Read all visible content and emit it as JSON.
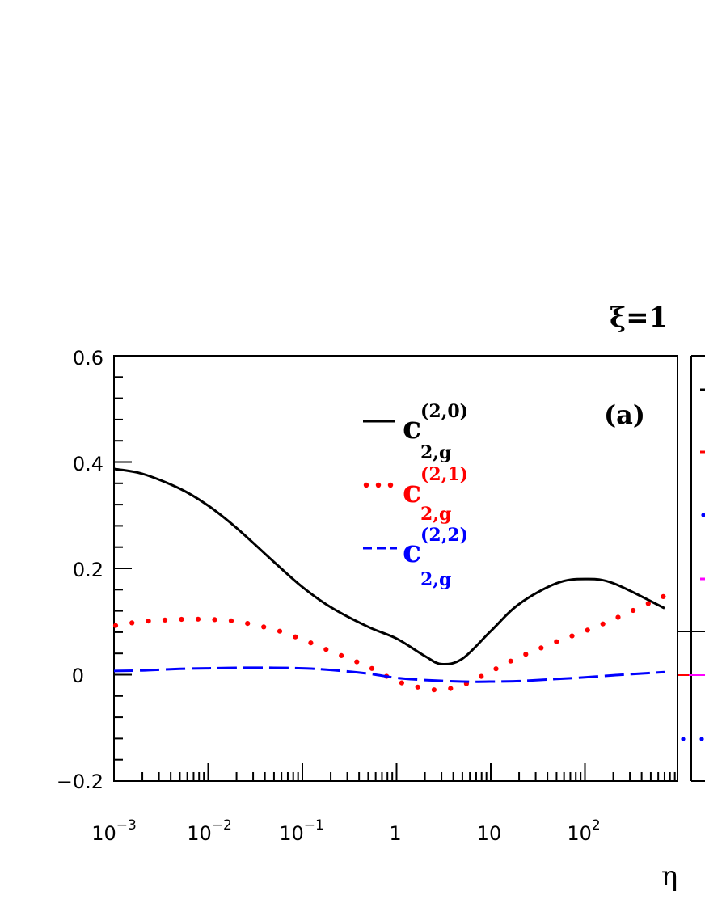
{
  "header": {
    "param": "ξ=1"
  },
  "panel_label": "(a)",
  "colors": {
    "c20": "#000000",
    "c21": "#ff0000",
    "c22": "#0000ff",
    "magenta": "#ff00ff"
  },
  "legend": [
    {
      "main": "c",
      "sup": "(2,0)",
      "sub": "2,g",
      "style": "solid"
    },
    {
      "main": "c",
      "sup": "(2,1)",
      "sub": "2,g",
      "style": "dotted"
    },
    {
      "main": "c",
      "sup": "(2,2)",
      "sub": "2,g",
      "style": "dashed"
    }
  ],
  "chart_data": {
    "type": "line",
    "xscale": "log",
    "xlabel": "η",
    "ylabel": "",
    "xlim": [
      0.001,
      700
    ],
    "ylim": [
      -0.2,
      0.6
    ],
    "grid": false,
    "legend_position": "top-center",
    "x_ticks": [
      {
        "base": "10",
        "exp": "−3"
      },
      {
        "base": "10",
        "exp": "−2"
      },
      {
        "base": "10",
        "exp": "−1"
      },
      {
        "base": "1",
        "exp": ""
      },
      {
        "base": "10",
        "exp": ""
      },
      {
        "base": "10",
        "exp": "2"
      }
    ],
    "y_ticks": [
      "−0.2",
      "0",
      "0.2",
      "0.4",
      "0.6"
    ],
    "series": [
      {
        "name": "c(2,0) 2,g",
        "style": "solid",
        "x": [
          0.001,
          0.002,
          0.005,
          0.01,
          0.02,
          0.05,
          0.1,
          0.2,
          0.5,
          1,
          2,
          3,
          5,
          10,
          20,
          50,
          100,
          200,
          700
        ],
        "y": [
          0.387,
          0.378,
          0.35,
          0.318,
          0.276,
          0.212,
          0.165,
          0.127,
          0.09,
          0.068,
          0.035,
          0.02,
          0.03,
          0.082,
          0.133,
          0.172,
          0.18,
          0.172,
          0.125
        ]
      },
      {
        "name": "c(2,1) 2,g",
        "style": "dotted",
        "x": [
          0.001,
          0.002,
          0.005,
          0.01,
          0.02,
          0.05,
          0.1,
          0.2,
          0.5,
          1,
          2,
          3,
          5,
          10,
          20,
          50,
          100,
          200,
          700
        ],
        "y": [
          0.092,
          0.1,
          0.104,
          0.104,
          0.1,
          0.085,
          0.066,
          0.044,
          0.015,
          -0.012,
          -0.026,
          -0.028,
          -0.02,
          0.006,
          0.033,
          0.062,
          0.082,
          0.104,
          0.148
        ]
      },
      {
        "name": "c(2,2) 2,g",
        "style": "dashed",
        "x": [
          0.001,
          0.002,
          0.005,
          0.01,
          0.02,
          0.05,
          0.1,
          0.2,
          0.5,
          1,
          2,
          5,
          10,
          20,
          50,
          100,
          200,
          700
        ],
        "y": [
          0.007,
          0.008,
          0.011,
          0.012,
          0.013,
          0.013,
          0.012,
          0.009,
          0.002,
          -0.006,
          -0.01,
          -0.013,
          -0.013,
          -0.012,
          -0.008,
          -0.005,
          -0.001,
          0.005
        ]
      }
    ]
  }
}
